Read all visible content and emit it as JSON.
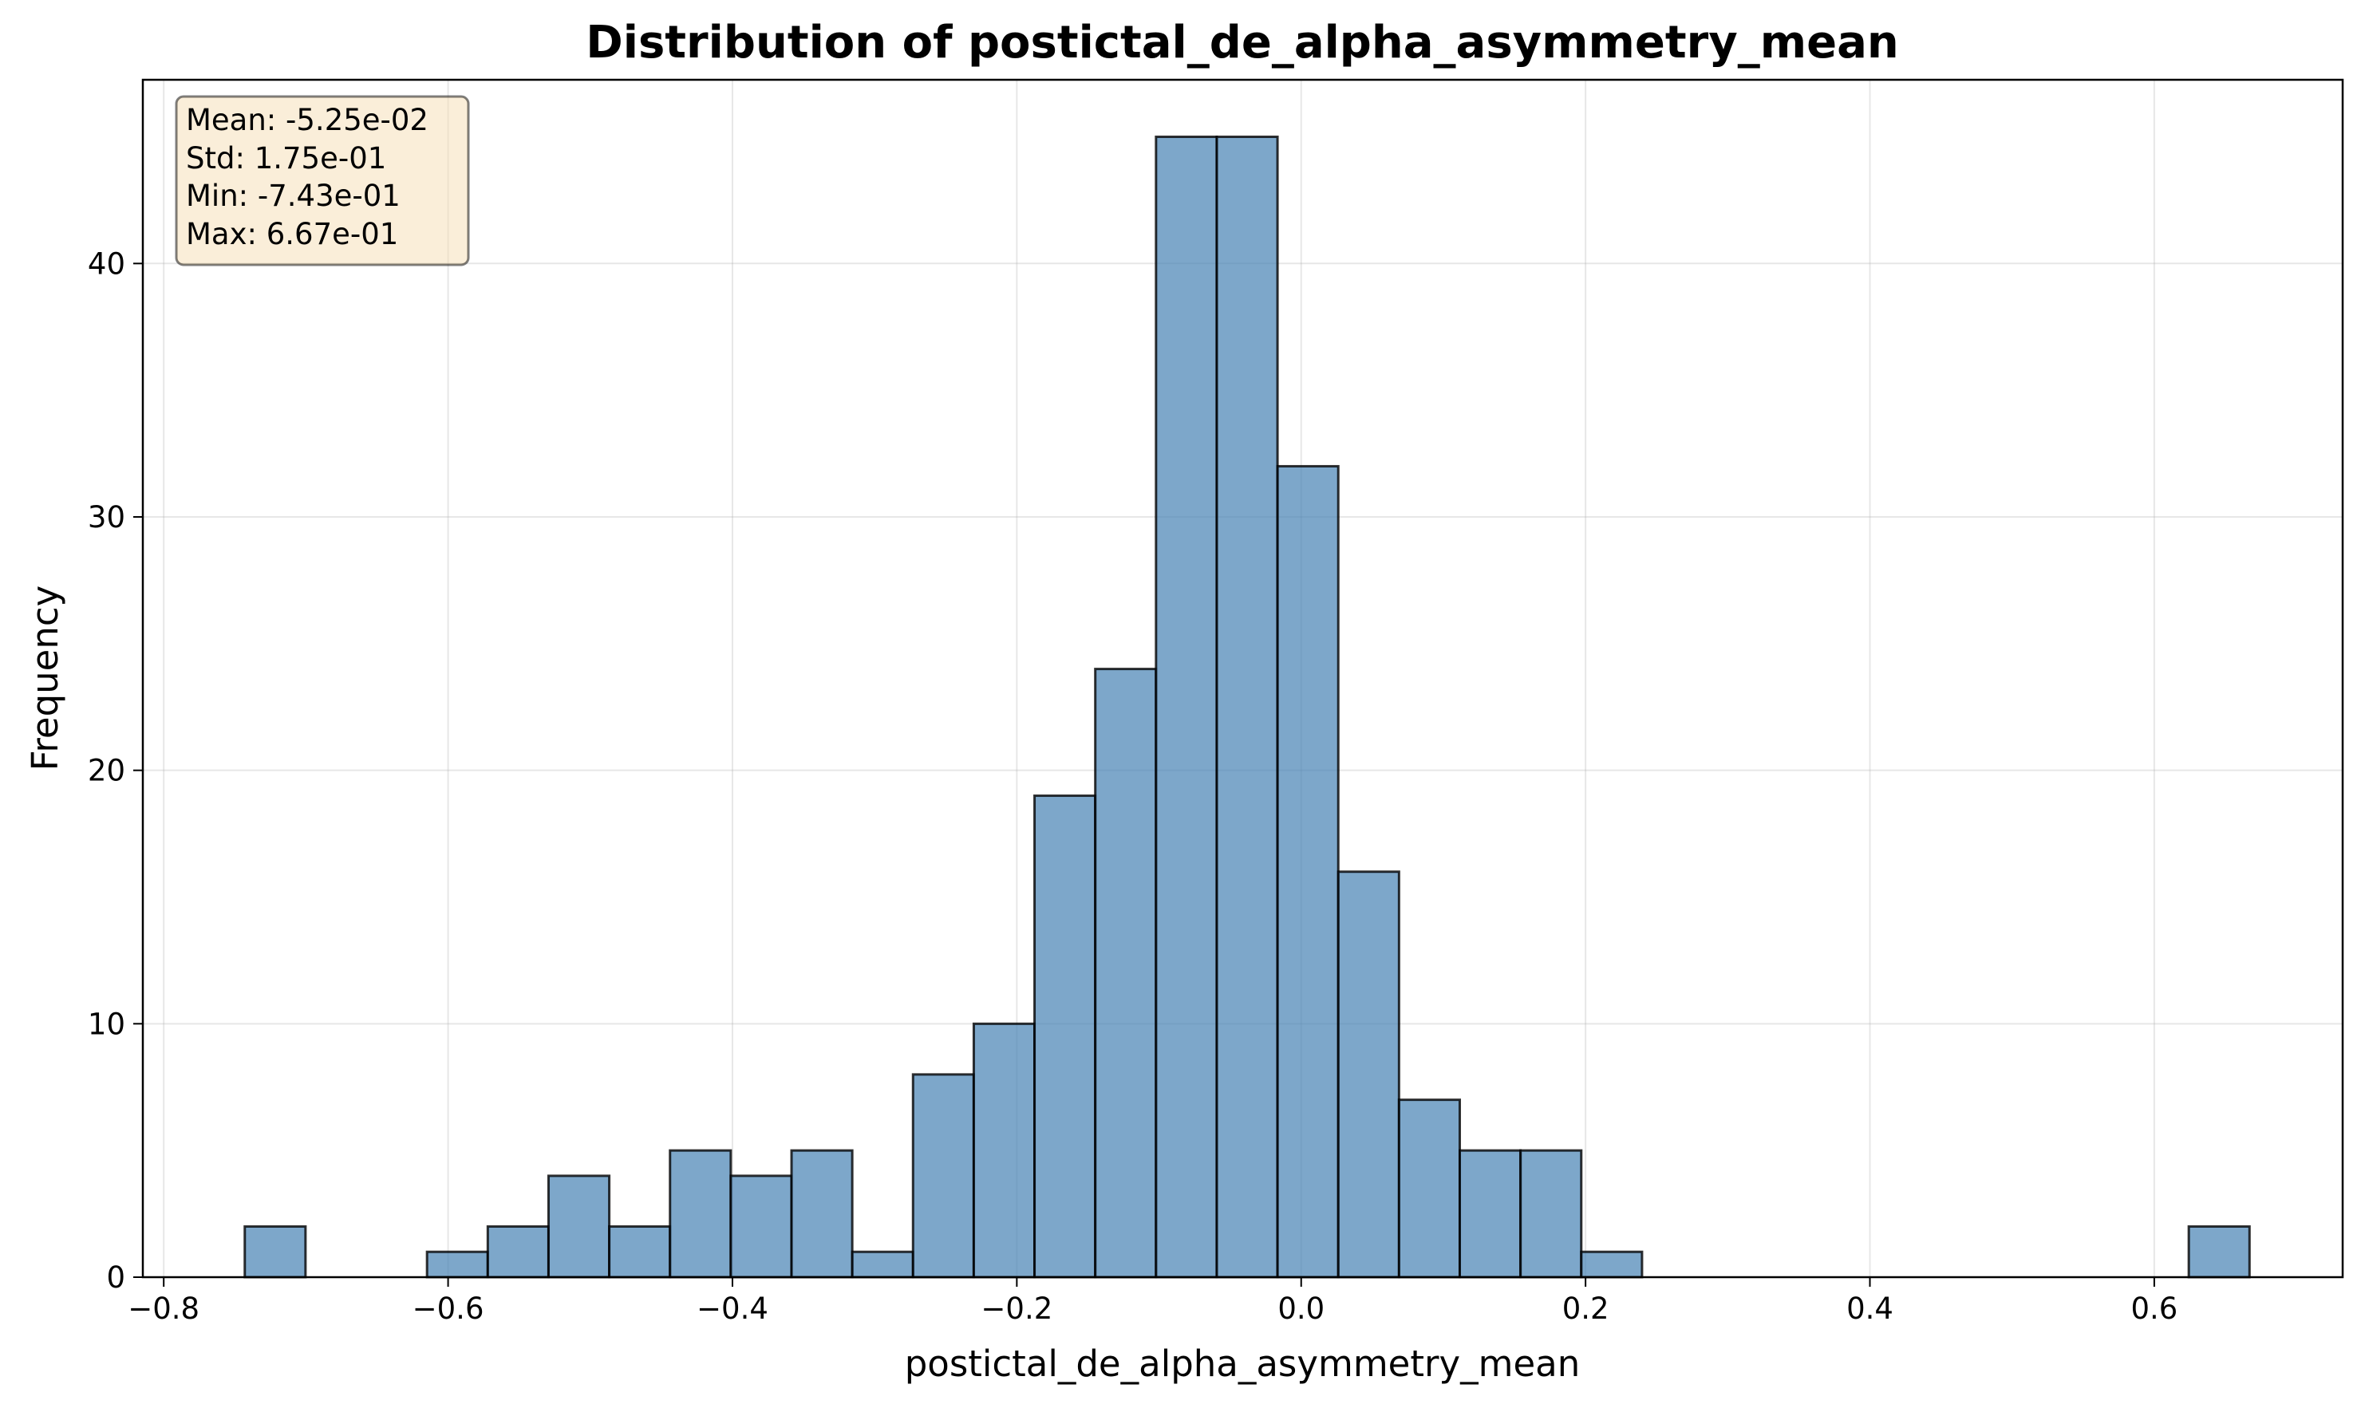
{
  "chart_data": {
    "type": "bar",
    "title": "Distribution of postictal_de_alpha_asymmetry_mean",
    "xlabel": "postictal_de_alpha_asymmetry_mean",
    "ylabel": "Frequency",
    "xlim": [
      -0.8147,
      0.7325
    ],
    "ylim": [
      0,
      47.25
    ],
    "x_ticks": [
      -0.8,
      -0.6,
      -0.4,
      -0.2,
      0.0,
      0.2,
      0.4,
      0.6
    ],
    "x_tick_labels": [
      "−0.8",
      "−0.6",
      "−0.4",
      "−0.2",
      "0.0",
      "0.2",
      "0.4",
      "0.6"
    ],
    "y_ticks": [
      0,
      10,
      20,
      30,
      40
    ],
    "y_tick_labels": [
      "0",
      "10",
      "20",
      "30",
      "40"
    ],
    "grid": true,
    "bin_start": -0.743,
    "bin_end": 0.667,
    "bin_count": 33,
    "values": [
      2,
      0,
      0,
      1,
      2,
      4,
      2,
      5,
      4,
      5,
      1,
      8,
      10,
      19,
      24,
      45,
      45,
      32,
      16,
      7,
      5,
      5,
      1,
      0,
      0,
      0,
      0,
      0,
      0,
      0,
      0,
      0,
      2
    ],
    "stats_box": {
      "position": "top-left",
      "lines": [
        "Mean: -5.25e-02",
        "Std: 1.75e-01",
        "Min: -7.43e-01",
        "Max: 6.67e-01"
      ]
    },
    "colors": {
      "bar": "#4682b4",
      "stats_box": "#f5deb3"
    }
  }
}
